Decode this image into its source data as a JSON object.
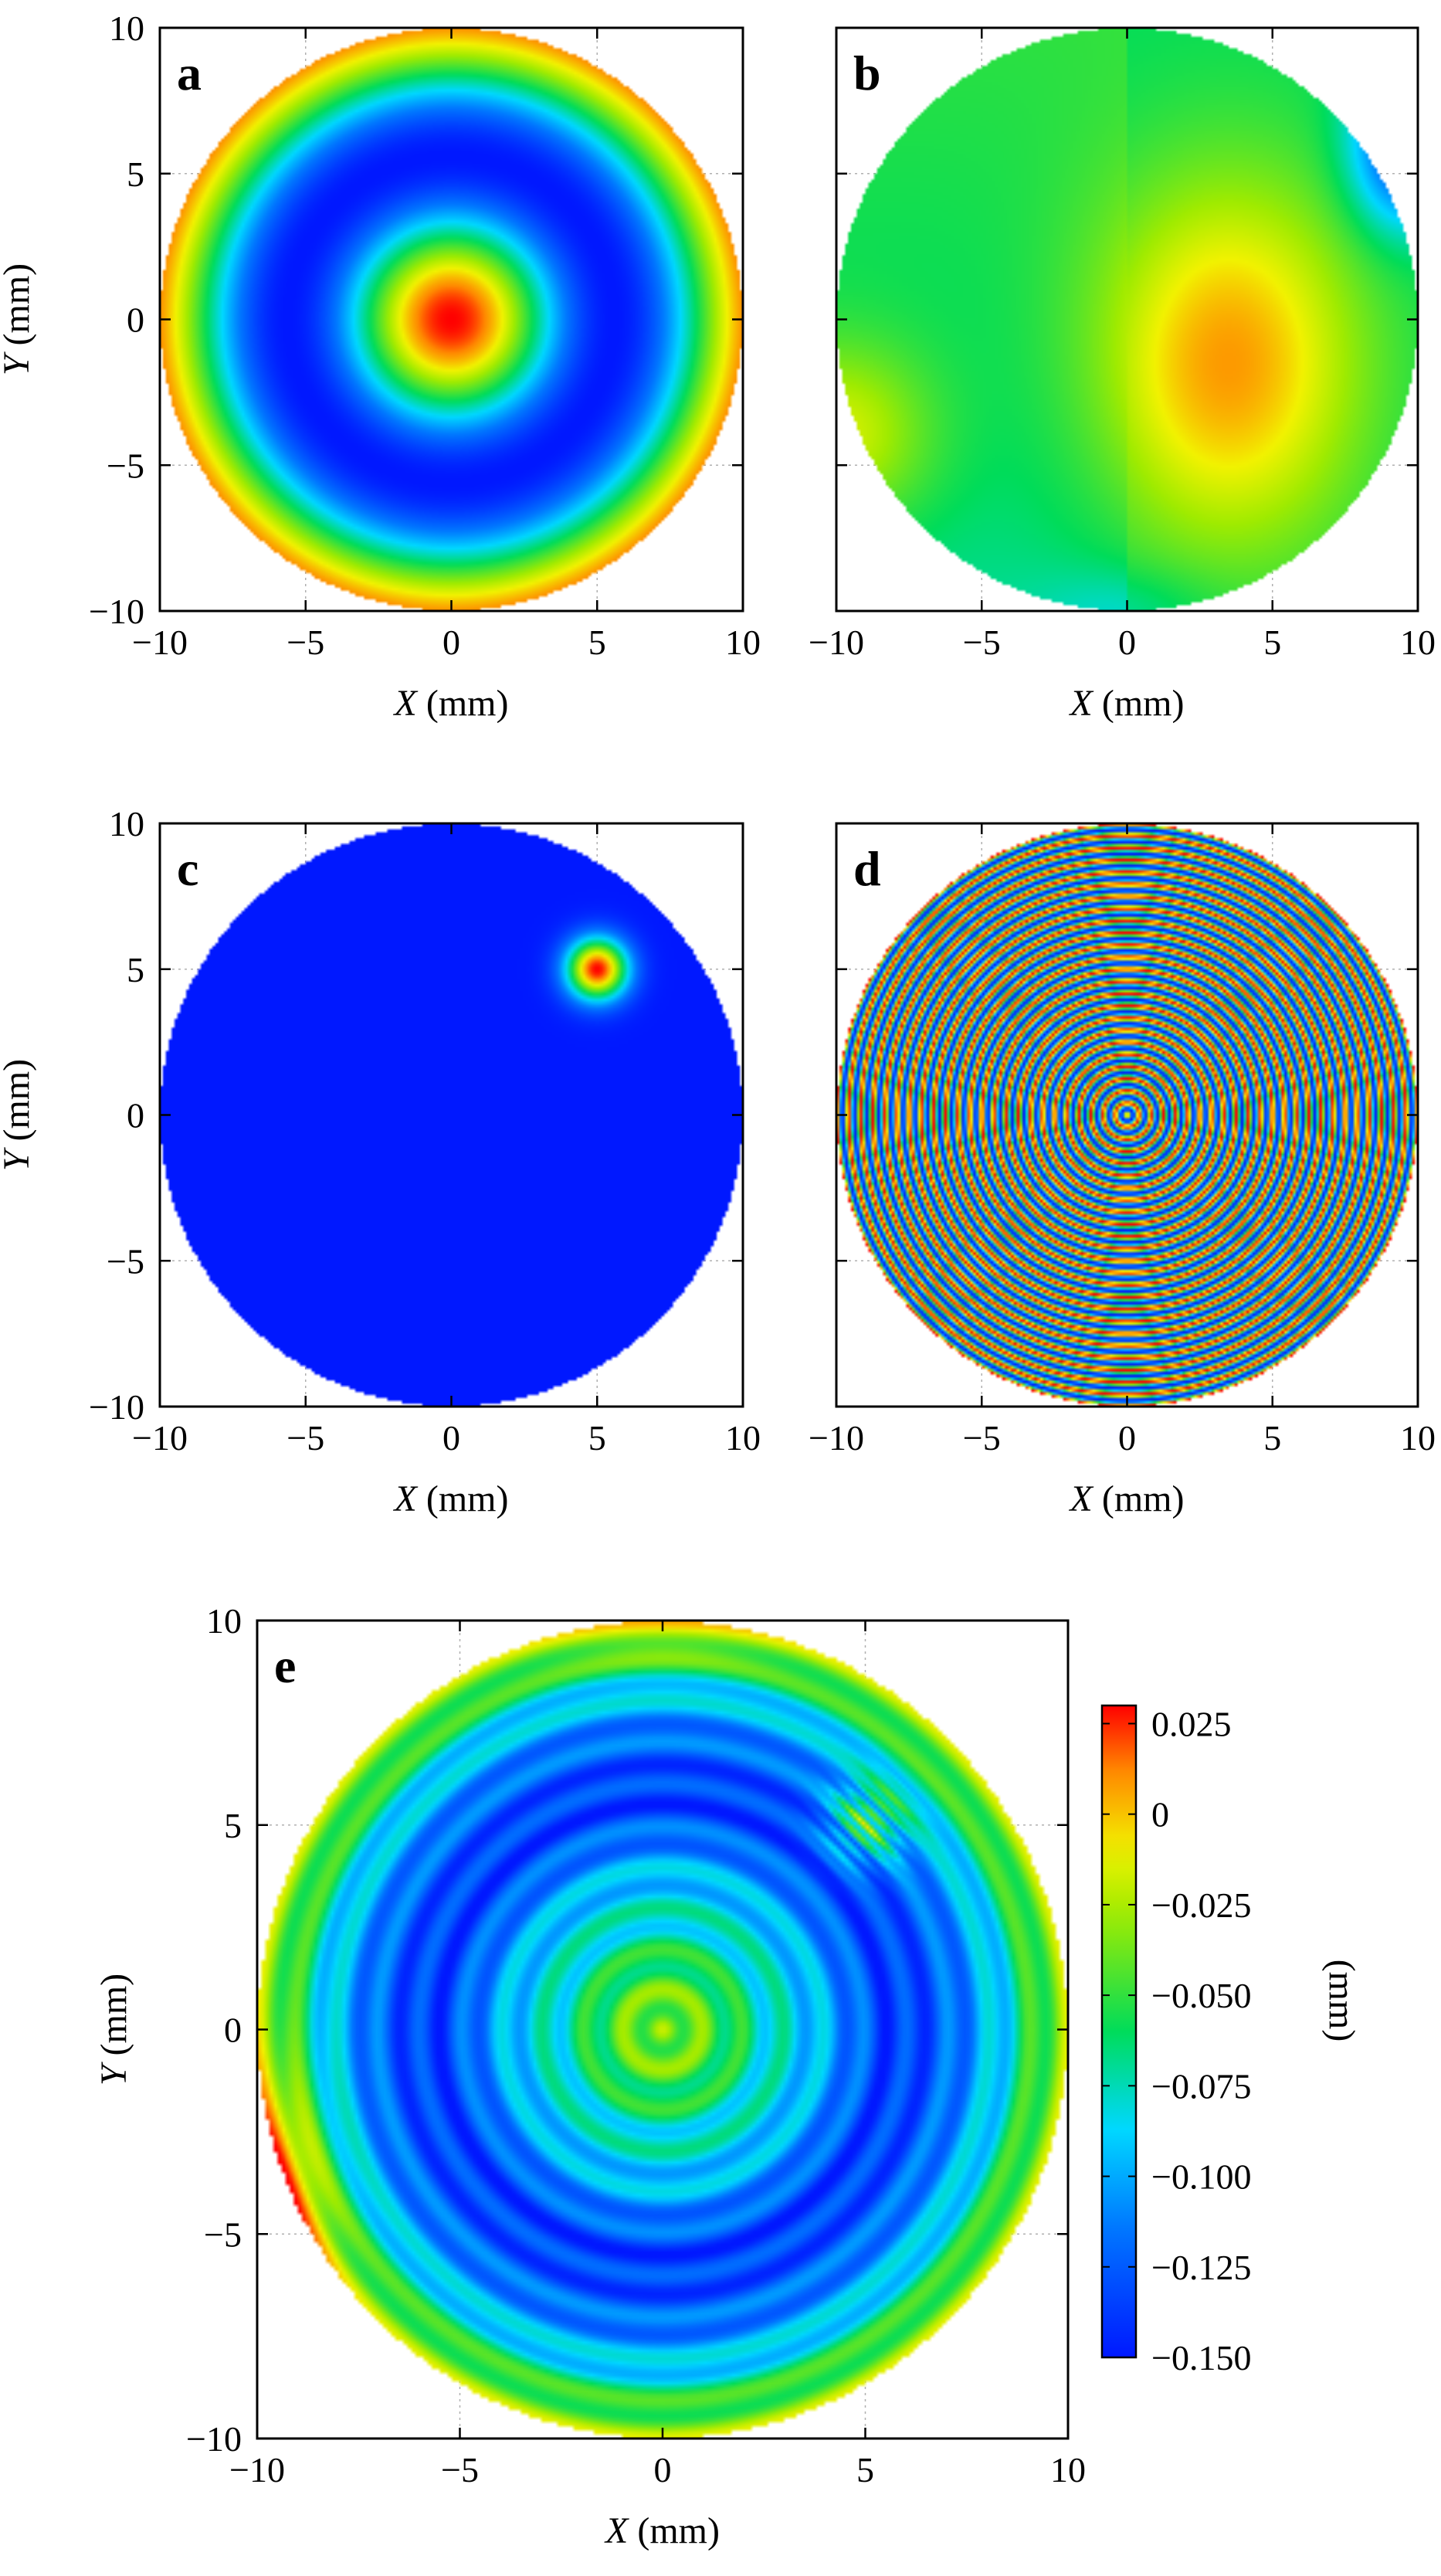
{
  "chart_data": [
    {
      "panel": "a",
      "type": "heatmap",
      "description": "Concentric ring pattern over circular aperture",
      "xlabel_var": "X",
      "xlabel_unit": "(mm)",
      "ylabel_var": "Y",
      "ylabel_unit": "(mm)",
      "xlim": [
        -10,
        10
      ],
      "ylim": [
        -10,
        10
      ],
      "xticks": [
        "−10",
        "−5",
        "0",
        "5",
        "10"
      ],
      "yticks": [
        "−10",
        "−5",
        "0",
        "5",
        "10"
      ],
      "grid": true,
      "field": {
        "kind": "radial",
        "peak_center": [
          0,
          0
        ]
      }
    },
    {
      "panel": "b",
      "type": "heatmap",
      "description": "Low-order smooth deformation with maximum right of center",
      "xlabel_var": "X",
      "xlabel_unit": "(mm)",
      "ylabel_var": "",
      "ylabel_unit": "",
      "xlim": [
        -10,
        10
      ],
      "ylim": [
        -10,
        10
      ],
      "xticks": [
        "−10",
        "−5",
        "0",
        "5",
        "10"
      ],
      "yticks": [],
      "grid": true,
      "field": {
        "kind": "smooth",
        "max_near": [
          3.5,
          -1.5
        ],
        "min_near": [
          9.5,
          6
        ]
      }
    },
    {
      "panel": "c",
      "type": "heatmap",
      "description": "Localized Gaussian bump",
      "xlabel_var": "X",
      "xlabel_unit": "(mm)",
      "ylabel_var": "Y",
      "ylabel_unit": "(mm)",
      "xlim": [
        -10,
        10
      ],
      "ylim": [
        -10,
        10
      ],
      "xticks": [
        "−10",
        "−5",
        "0",
        "5",
        "10"
      ],
      "yticks": [
        "−10",
        "−5",
        "0",
        "5",
        "10"
      ],
      "grid": true,
      "field": {
        "kind": "gaussian",
        "center": [
          5,
          5
        ],
        "width_mm": 1.2
      }
    },
    {
      "panel": "d",
      "type": "heatmap",
      "description": "Dense concentric ripples",
      "xlabel_var": "X",
      "xlabel_unit": "(mm)",
      "ylabel_var": "",
      "ylabel_unit": "",
      "xlim": [
        -10,
        10
      ],
      "ylim": [
        -10,
        10
      ],
      "xticks": [
        "−10",
        "−5",
        "0",
        "5",
        "10"
      ],
      "yticks": [],
      "grid": true,
      "field": {
        "kind": "ripple",
        "rings_to_edge": 24
      }
    },
    {
      "panel": "e",
      "type": "heatmap",
      "description": "Sum of components a-d",
      "xlabel_var": "X",
      "xlabel_unit": "(mm)",
      "ylabel_var": "Y",
      "ylabel_unit": "(mm)",
      "xlim": [
        -10,
        10
      ],
      "ylim": [
        -10,
        10
      ],
      "xticks": [
        "−10",
        "−5",
        "0",
        "5",
        "10"
      ],
      "yticks": [
        "−10",
        "−5",
        "0",
        "5",
        "10"
      ],
      "grid": true,
      "field": {
        "kind": "sum"
      },
      "colorbar": {
        "label": "(mm)",
        "min": -0.15,
        "max": 0.03,
        "tick_values": [
          0.025,
          0,
          -0.025,
          -0.05,
          -0.075,
          -0.1,
          -0.125,
          -0.15
        ],
        "tick_labels": [
          "0.025",
          "0",
          "−0.025",
          "−0.050",
          "−0.075",
          "−0.100",
          "−0.125",
          "−0.150"
        ],
        "colormap": [
          "#0018ff",
          "#00d8ff",
          "#00dc5a",
          "#f2f200",
          "#ff8800",
          "#ff0000"
        ]
      }
    }
  ]
}
